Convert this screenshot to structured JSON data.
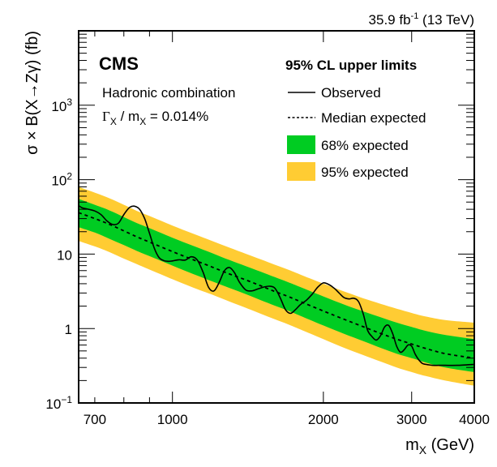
{
  "chart_data": {
    "type": "line",
    "title": "",
    "experiment_label": "CMS",
    "lumi_label": {
      "value": "35.9 fb",
      "sup": "-1",
      "energy": " (13 TeV)"
    },
    "annotation": {
      "line1": "Hadronic combination",
      "line2_prefix": "Γ",
      "line2_sub1": "X",
      "line2_mid": " / m",
      "line2_sub2": "X",
      "line2_suffix": " = 0.014%"
    },
    "legend": {
      "title": "95% CL upper limits",
      "position": "top-right",
      "entries": [
        {
          "label": "Observed",
          "style": "solid-line"
        },
        {
          "label": "Median expected",
          "style": "dashed-line"
        },
        {
          "label": "68% expected",
          "style": "fill",
          "color": "#00cc22"
        },
        {
          "label": "95% expected",
          "style": "fill",
          "color": "#ffcc33"
        }
      ]
    },
    "xlabel": {
      "main": "m",
      "sub": "X",
      "unit": " (GeV)"
    },
    "ylabel": "σ × B(X→Zγ) (fb)",
    "xscale": "log",
    "yscale": "log",
    "xlim": [
      650,
      4000
    ],
    "ylim": [
      0.1,
      10000
    ],
    "xticks": [
      {
        "value": 700,
        "label": "700"
      },
      {
        "value": 1000,
        "label": "1000"
      },
      {
        "value": 2000,
        "label": "2000"
      },
      {
        "value": 3000,
        "label": "3000"
      },
      {
        "value": 4000,
        "label": "4000"
      }
    ],
    "yticks": [
      {
        "value": 0.1,
        "label": "10",
        "sup": "−1"
      },
      {
        "value": 1,
        "label": "1",
        "sup": ""
      },
      {
        "value": 10,
        "label": "10",
        "sup": ""
      },
      {
        "value": 100,
        "label": "10",
        "sup": "2"
      },
      {
        "value": 1000,
        "label": "10",
        "sup": "3"
      }
    ],
    "colors": {
      "band68": "#00cc22",
      "band95": "#ffcc33",
      "line": "#000000"
    },
    "x": [
      650,
      700,
      750,
      800,
      850,
      900,
      1000,
      1100,
      1200,
      1300,
      1400,
      1500,
      1600,
      1700,
      1800,
      2000,
      2200,
      2400,
      2600,
      2800,
      3000,
      3200,
      3500,
      4000
    ],
    "series": [
      {
        "name": "Median expected",
        "values": [
          36,
          30,
          25,
          20.5,
          17,
          14.5,
          10.8,
          8.4,
          6.7,
          5.4,
          4.5,
          3.75,
          3.15,
          2.7,
          2.3,
          1.72,
          1.33,
          1.06,
          0.86,
          0.72,
          0.62,
          0.54,
          0.46,
          0.4
        ]
      },
      {
        "name": "68% expected lower",
        "values": [
          23,
          19.5,
          16,
          13.2,
          11,
          9.4,
          7.0,
          5.4,
          4.3,
          3.5,
          2.9,
          2.4,
          2.03,
          1.74,
          1.48,
          1.1,
          0.85,
          0.68,
          0.55,
          0.46,
          0.4,
          0.35,
          0.3,
          0.26
        ]
      },
      {
        "name": "68% expected upper",
        "values": [
          55,
          46,
          38.5,
          31.5,
          26,
          22.3,
          16.6,
          12.9,
          10.3,
          8.3,
          6.9,
          5.8,
          4.9,
          4.2,
          3.6,
          2.7,
          2.1,
          1.7,
          1.42,
          1.2,
          1.05,
          0.93,
          0.82,
          0.72
        ]
      },
      {
        "name": "95% expected lower",
        "values": [
          15,
          12.7,
          10.6,
          8.7,
          7.3,
          6.2,
          4.6,
          3.55,
          2.85,
          2.3,
          1.9,
          1.58,
          1.33,
          1.14,
          0.97,
          0.72,
          0.55,
          0.44,
          0.36,
          0.3,
          0.26,
          0.23,
          0.2,
          0.17
        ]
      },
      {
        "name": "95% expected upper",
        "values": [
          80,
          67,
          56,
          46,
          38,
          32.5,
          24.2,
          18.8,
          15,
          12.2,
          10.1,
          8.5,
          7.2,
          6.2,
          5.3,
          4.0,
          3.15,
          2.55,
          2.15,
          1.85,
          1.62,
          1.45,
          1.3,
          1.2
        ]
      },
      {
        "name": "Observed",
        "x": [
          650,
          660,
          680,
          700,
          720,
          740,
          760,
          780,
          800,
          820,
          840,
          860,
          880,
          900,
          920,
          940,
          960,
          980,
          1000,
          1030,
          1060,
          1090,
          1120,
          1150,
          1180,
          1210,
          1240,
          1270,
          1300,
          1330,
          1360,
          1400,
          1440,
          1480,
          1520,
          1560,
          1600,
          1640,
          1680,
          1720,
          1760,
          1800,
          1850,
          1900,
          1950,
          2000,
          2050,
          2100,
          2150,
          2200,
          2250,
          2300,
          2350,
          2400,
          2450,
          2500,
          2550,
          2600,
          2650,
          2700,
          2750,
          2800,
          2850,
          2900,
          2950,
          3000,
          3050,
          3100,
          3150,
          3200,
          3300,
          3400,
          3500,
          3700,
          4000
        ],
        "values": [
          45,
          42,
          40,
          38,
          34,
          28,
          25,
          26,
          34,
          42,
          44,
          40,
          30,
          19,
          12,
          9,
          8.2,
          8.0,
          8.1,
          8.4,
          8.3,
          9.2,
          8.4,
          5.8,
          3.6,
          3.2,
          4.2,
          6.0,
          6.6,
          5.6,
          4.2,
          3.3,
          3.2,
          3.4,
          3.6,
          3.7,
          3.5,
          2.6,
          1.8,
          1.6,
          1.8,
          2.1,
          2.4,
          2.9,
          3.6,
          4.1,
          3.9,
          3.5,
          3.0,
          2.6,
          2.5,
          2.55,
          2.3,
          1.6,
          0.95,
          0.78,
          0.7,
          0.8,
          1.05,
          1.1,
          0.85,
          0.58,
          0.48,
          0.52,
          0.6,
          0.58,
          0.45,
          0.38,
          0.34,
          0.33,
          0.32,
          0.32,
          0.32,
          0.32,
          0.33
        ]
      }
    ]
  }
}
